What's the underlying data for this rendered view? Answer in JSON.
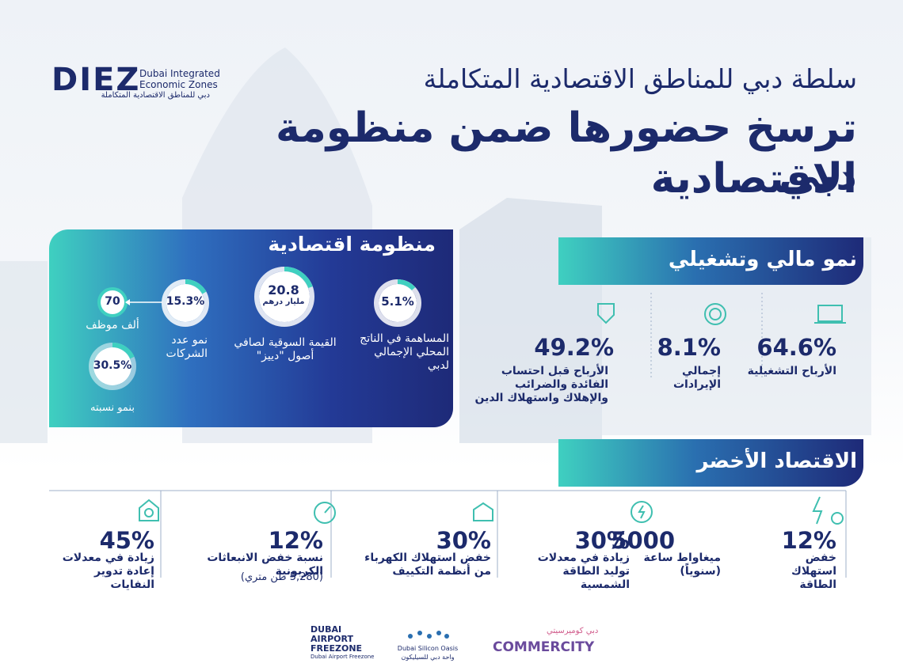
{
  "logo": {
    "mark": "DIEZ",
    "en_line1": "Dubai Integrated",
    "en_line2": "Economic Zones",
    "ar": "دبي للمناطق الاقتصادية المتكاملة"
  },
  "header": {
    "subtitle": "سلطة دبي للمناطق الاقتصادية المتكاملة",
    "title_line1": "ترسخ حضورها ضمن منظومة دبي",
    "title_line2": "الاقتصادية"
  },
  "ecosystem": {
    "title": "منظومة اقتصادية",
    "items": [
      {
        "value": "5.1%",
        "label": "المساهمة في الناتج المحلي الإجمالي لدبي"
      },
      {
        "value": "20.8",
        "unit": "مليار درهم",
        "label": "القيمة السوقية لصافي أصول \"دييز\""
      },
      {
        "value": "15.3%",
        "label": "نمو عدد الشركات"
      },
      {
        "value": "70",
        "label": "ألف موظف"
      },
      {
        "value": "30.5%",
        "label": "بنمو نسبته"
      }
    ]
  },
  "financial": {
    "title": "نمو مالي وتشغيلي",
    "items": [
      {
        "value": "64.6%",
        "label": "الأرباح التشغيلية"
      },
      {
        "value": "8.1%",
        "label": "إجمالي الإيرادات"
      },
      {
        "value": "49.2%",
        "label": "الأرباح قبل احتساب الفائدة والضرائب والإهلاك واستهلاك الدين"
      }
    ]
  },
  "green": {
    "title": "الاقتصاد الأخضر",
    "items": [
      {
        "value": "12%",
        "label": "خفض استهلاك الطاقة"
      },
      {
        "value": "5000",
        "label": "ميغاواط ساعة (سنوياً)"
      },
      {
        "value": "30%",
        "label": "زيادة في معدلات توليد الطاقة الشمسية"
      },
      {
        "value": "30%",
        "label": "خفض استهلاك الكهرباء من أنظمة التكييف"
      },
      {
        "value": "12%",
        "label": "نسبة خفض الانبعاثات الكربونية",
        "note": "(5,280 طن متري)"
      },
      {
        "value": "45%",
        "label": "زيادة في معدلات إعادة تدوير النفايات"
      }
    ]
  },
  "partners": [
    {
      "name": "DUBAI AIRPORT FREEZONE",
      "sub": "Dubai Airport Freezone"
    },
    {
      "name": "Dubai Silicon Oasis",
      "sub": "واحة دبي للسيليكون"
    },
    {
      "name": "COMMERCITY",
      "sub": "دبي كوميرسيتي"
    }
  ]
}
